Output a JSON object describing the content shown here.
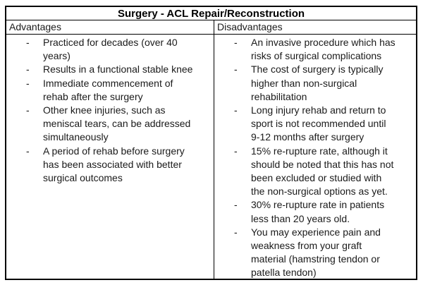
{
  "table": {
    "title": "Surgery - ACL Repair/Reconstruction",
    "columns": [
      {
        "header": "Advantages",
        "items": [
          "Practiced for decades (over 40\nyears)",
          "Results in a functional stable knee",
          "Immediate commencement of\nrehab after the surgery",
          "Other knee injuries, such as\nmeniscal tears, can be addressed\nsimultaneously",
          "A period of rehab before surgery\nhas been associated with better\nsurgical outcomes"
        ]
      },
      {
        "header": "Disadvantages",
        "items": [
          "An invasive procedure which has\nrisks of surgical complications",
          "The cost of surgery is typically\nhigher than non-surgical\nrehabilitation",
          "Long injury rehab and return to\nsport is not recommended until\n9-12 months after surgery",
          "15% re-rupture rate, although it\nshould be noted that this has not\nbeen excluded or studied with\nthe non-surgical options as yet.",
          "30% re-rupture rate in patients\nless than 20 years old.",
          "You may experience pain and\nweakness from your graft\nmaterial (hamstring tendon or\npatella tendon)"
        ]
      }
    ],
    "colors": {
      "border": "#000000",
      "text": "#1a1a1a",
      "background": "#ffffff"
    }
  }
}
